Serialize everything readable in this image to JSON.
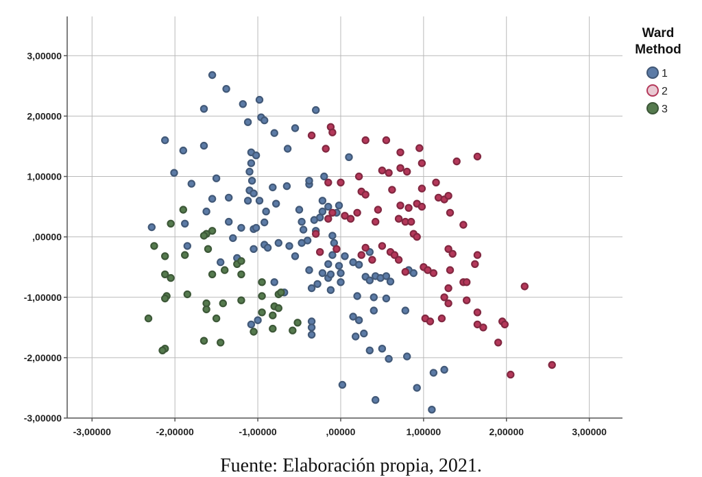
{
  "chart_data": {
    "type": "scatter",
    "title": "",
    "xlabel": "",
    "ylabel": "",
    "xlim": [
      -3.3,
      3.4
    ],
    "ylim": [
      -3.0,
      3.65
    ],
    "x_ticks": [
      -3,
      -2,
      -1,
      0,
      1,
      2,
      3
    ],
    "y_ticks": [
      -3,
      -2,
      -1,
      0,
      1,
      2,
      3
    ],
    "x_tick_labels": [
      "-3,00000",
      "-2,00000",
      "-1,00000",
      ",00000",
      "1,00000",
      "2,00000",
      "3,00000"
    ],
    "y_tick_labels": [
      "-3,00000",
      "-2,00000",
      "-1,00000",
      ",00000",
      "1,00000",
      "2,00000",
      "3,00000"
    ],
    "grid": true,
    "legend": {
      "title_lines": [
        "Ward",
        "Method"
      ],
      "placement": "top-right",
      "entries": [
        "1",
        "2",
        "3"
      ]
    },
    "series": [
      {
        "name": "1",
        "color": "#5c7ba6",
        "points": [
          [
            -1.55,
            2.68
          ],
          [
            -1.38,
            2.45
          ],
          [
            -1.18,
            2.2
          ],
          [
            -1.65,
            2.12
          ],
          [
            -0.98,
            2.27
          ],
          [
            -1.12,
            1.9
          ],
          [
            -0.96,
            1.98
          ],
          [
            -0.92,
            1.93
          ],
          [
            -0.3,
            2.1
          ],
          [
            -0.55,
            1.8
          ],
          [
            -0.8,
            1.72
          ],
          [
            -2.12,
            1.6
          ],
          [
            -1.9,
            1.43
          ],
          [
            -1.65,
            1.51
          ],
          [
            -1.08,
            1.4
          ],
          [
            -1.02,
            1.35
          ],
          [
            -0.64,
            1.46
          ],
          [
            -1.08,
            1.22
          ],
          [
            -2.01,
            1.06
          ],
          [
            -1.5,
            0.97
          ],
          [
            -1.1,
            1.08
          ],
          [
            -1.07,
            0.93
          ],
          [
            -1.8,
            0.88
          ],
          [
            -1.35,
            0.65
          ],
          [
            -1.1,
            0.77
          ],
          [
            -1.05,
            0.72
          ],
          [
            -0.82,
            0.82
          ],
          [
            -0.65,
            0.84
          ],
          [
            -0.98,
            0.6
          ],
          [
            -1.55,
            0.63
          ],
          [
            -0.38,
            0.87
          ],
          [
            -0.38,
            0.93
          ],
          [
            -0.22,
            0.6
          ],
          [
            -0.15,
            0.5
          ],
          [
            -0.2,
            1.0
          ],
          [
            0.1,
            1.32
          ],
          [
            -0.02,
            0.52
          ],
          [
            -0.32,
            0.28
          ],
          [
            -0.47,
            0.25
          ],
          [
            -0.9,
            0.42
          ],
          [
            -0.78,
            0.55
          ],
          [
            -1.2,
            0.15
          ],
          [
            -1.05,
            0.13
          ],
          [
            -0.92,
            0.24
          ],
          [
            -1.02,
            0.15
          ],
          [
            -1.62,
            0.42
          ],
          [
            -1.88,
            0.22
          ],
          [
            -2.28,
            0.16
          ],
          [
            -1.85,
            -0.15
          ],
          [
            -1.3,
            -0.02
          ],
          [
            -0.92,
            -0.13
          ],
          [
            -0.88,
            -0.18
          ],
          [
            -0.75,
            -0.1
          ],
          [
            -0.62,
            -0.15
          ],
          [
            -0.55,
            -0.32
          ],
          [
            -0.47,
            -0.1
          ],
          [
            -0.4,
            -0.06
          ],
          [
            -0.38,
            -0.55
          ],
          [
            -0.22,
            -0.6
          ],
          [
            -0.15,
            -0.45
          ],
          [
            -0.1,
            -0.3
          ],
          [
            -0.02,
            -0.48
          ],
          [
            0.05,
            -0.32
          ],
          [
            0.15,
            -0.42
          ],
          [
            0.22,
            -0.46
          ],
          [
            0.35,
            -0.25
          ],
          [
            0.42,
            -0.65
          ],
          [
            0.48,
            -0.68
          ],
          [
            0.55,
            -0.65
          ],
          [
            0.6,
            -0.74
          ],
          [
            0.3,
            -0.66
          ],
          [
            -0.12,
            -0.88
          ],
          [
            0.0,
            -0.6
          ],
          [
            -0.8,
            -0.75
          ],
          [
            -0.68,
            -0.92
          ],
          [
            -0.35,
            -0.85
          ],
          [
            -0.28,
            -0.78
          ],
          [
            -0.15,
            -0.68
          ],
          [
            0.2,
            -0.98
          ],
          [
            0.4,
            -1.0
          ],
          [
            0.55,
            -1.02
          ],
          [
            0.82,
            -0.55
          ],
          [
            0.88,
            -0.6
          ],
          [
            0.78,
            -1.22
          ],
          [
            0.4,
            -1.22
          ],
          [
            0.15,
            -1.32
          ],
          [
            0.22,
            -1.38
          ],
          [
            0.18,
            -1.65
          ],
          [
            0.28,
            -1.6
          ],
          [
            -0.35,
            -1.4
          ],
          [
            -0.35,
            -1.5
          ],
          [
            -0.35,
            -1.62
          ],
          [
            -1.0,
            -1.38
          ],
          [
            -1.08,
            -1.45
          ],
          [
            0.35,
            -1.88
          ],
          [
            0.5,
            -1.85
          ],
          [
            0.58,
            -2.02
          ],
          [
            0.8,
            -1.98
          ],
          [
            1.12,
            -2.25
          ],
          [
            1.25,
            -2.2
          ],
          [
            0.02,
            -2.45
          ],
          [
            0.42,
            -2.7
          ],
          [
            0.92,
            -2.5
          ],
          [
            1.1,
            -2.86
          ],
          [
            -0.3,
            0.1
          ],
          [
            -0.1,
            0.02
          ],
          [
            -0.45,
            0.12
          ],
          [
            -1.05,
            -0.2
          ],
          [
            -0.5,
            0.45
          ],
          [
            -0.08,
            -0.1
          ],
          [
            0.0,
            -0.75
          ],
          [
            -0.12,
            -0.62
          ],
          [
            0.35,
            -0.72
          ],
          [
            -0.22,
            0.42
          ],
          [
            -1.12,
            0.6
          ],
          [
            -1.35,
            0.25
          ],
          [
            -1.25,
            -0.35
          ],
          [
            -1.45,
            -0.42
          ],
          [
            -0.25,
            0.32
          ],
          [
            -0.05,
            0.4
          ]
        ]
      },
      {
        "name": "2",
        "color": "#b4385a",
        "points": [
          [
            -0.35,
            1.68
          ],
          [
            -0.12,
            1.82
          ],
          [
            -0.1,
            1.73
          ],
          [
            -0.18,
            1.46
          ],
          [
            0.3,
            1.6
          ],
          [
            0.55,
            1.6
          ],
          [
            0.72,
            1.4
          ],
          [
            0.95,
            1.47
          ],
          [
            0.98,
            1.22
          ],
          [
            0.72,
            1.14
          ],
          [
            0.8,
            1.08
          ],
          [
            0.5,
            1.1
          ],
          [
            0.58,
            1.06
          ],
          [
            0.62,
            0.78
          ],
          [
            0.22,
            1.0
          ],
          [
            -0.15,
            0.9
          ],
          [
            0.0,
            0.9
          ],
          [
            0.25,
            0.75
          ],
          [
            0.3,
            0.7
          ],
          [
            0.45,
            0.45
          ],
          [
            0.42,
            0.25
          ],
          [
            0.2,
            0.4
          ],
          [
            0.05,
            0.35
          ],
          [
            0.12,
            0.3
          ],
          [
            -0.1,
            0.4
          ],
          [
            0.72,
            0.52
          ],
          [
            0.82,
            0.48
          ],
          [
            0.92,
            0.55
          ],
          [
            0.98,
            0.5
          ],
          [
            0.98,
            0.8
          ],
          [
            1.15,
            0.9
          ],
          [
            1.18,
            0.65
          ],
          [
            1.25,
            0.62
          ],
          [
            1.3,
            0.68
          ],
          [
            1.4,
            1.25
          ],
          [
            1.65,
            1.33
          ],
          [
            1.32,
            0.4
          ],
          [
            1.48,
            0.2
          ],
          [
            0.78,
            0.25
          ],
          [
            0.85,
            0.25
          ],
          [
            0.7,
            0.3
          ],
          [
            0.88,
            0.05
          ],
          [
            0.92,
            0.0
          ],
          [
            0.6,
            -0.25
          ],
          [
            0.65,
            -0.3
          ],
          [
            0.7,
            -0.38
          ],
          [
            0.78,
            -0.58
          ],
          [
            0.5,
            -0.15
          ],
          [
            0.3,
            -0.18
          ],
          [
            0.38,
            -0.38
          ],
          [
            0.25,
            -0.3
          ],
          [
            -0.05,
            -0.2
          ],
          [
            -0.25,
            -0.25
          ],
          [
            -0.15,
            0.3
          ],
          [
            -0.3,
            0.05
          ],
          [
            1.0,
            -0.5
          ],
          [
            1.05,
            -0.55
          ],
          [
            1.12,
            -0.6
          ],
          [
            1.3,
            -0.2
          ],
          [
            1.35,
            -0.28
          ],
          [
            1.32,
            -0.55
          ],
          [
            1.48,
            -0.75
          ],
          [
            1.52,
            -0.75
          ],
          [
            1.65,
            -0.3
          ],
          [
            1.62,
            -0.45
          ],
          [
            1.3,
            -0.85
          ],
          [
            1.25,
            -1.0
          ],
          [
            1.3,
            -1.1
          ],
          [
            1.52,
            -1.05
          ],
          [
            1.65,
            -1.25
          ],
          [
            1.65,
            -1.45
          ],
          [
            1.72,
            -1.5
          ],
          [
            1.95,
            -1.4
          ],
          [
            1.98,
            -1.45
          ],
          [
            1.9,
            -1.75
          ],
          [
            1.02,
            -1.35
          ],
          [
            1.08,
            -1.4
          ],
          [
            1.22,
            -1.35
          ],
          [
            2.22,
            -0.82
          ],
          [
            2.05,
            -2.28
          ],
          [
            2.55,
            -2.12
          ]
        ]
      },
      {
        "name": "3",
        "color": "#557a4e",
        "points": [
          [
            -1.9,
            0.45
          ],
          [
            -2.05,
            0.22
          ],
          [
            -1.62,
            0.05
          ],
          [
            -1.65,
            0.02
          ],
          [
            -1.55,
            0.1
          ],
          [
            -2.25,
            -0.15
          ],
          [
            -2.12,
            -0.32
          ],
          [
            -1.88,
            -0.3
          ],
          [
            -1.6,
            -0.2
          ],
          [
            -1.4,
            -0.55
          ],
          [
            -1.25,
            -0.45
          ],
          [
            -1.2,
            -0.4
          ],
          [
            -2.12,
            -0.62
          ],
          [
            -2.05,
            -0.68
          ],
          [
            -1.55,
            -0.62
          ],
          [
            -1.2,
            -0.62
          ],
          [
            -0.95,
            -0.75
          ],
          [
            -0.75,
            -0.95
          ],
          [
            -0.72,
            -0.92
          ],
          [
            -0.95,
            -0.98
          ],
          [
            -1.2,
            -1.05
          ],
          [
            -1.42,
            -1.1
          ],
          [
            -1.62,
            -1.1
          ],
          [
            -1.62,
            -1.2
          ],
          [
            -1.85,
            -0.95
          ],
          [
            -2.1,
            -0.98
          ],
          [
            -2.12,
            -1.02
          ],
          [
            -0.8,
            -1.15
          ],
          [
            -0.75,
            -1.18
          ],
          [
            -0.82,
            -1.3
          ],
          [
            -0.95,
            -1.25
          ],
          [
            -1.5,
            -1.35
          ],
          [
            -2.32,
            -1.35
          ],
          [
            -0.52,
            -1.42
          ],
          [
            -0.58,
            -1.55
          ],
          [
            -0.82,
            -1.52
          ],
          [
            -1.05,
            -1.57
          ],
          [
            -1.65,
            -1.72
          ],
          [
            -1.45,
            -1.75
          ],
          [
            -2.12,
            -1.85
          ],
          [
            -2.15,
            -1.88
          ]
        ]
      }
    ]
  },
  "caption": "Fuente: Elaboración propia, 2021."
}
